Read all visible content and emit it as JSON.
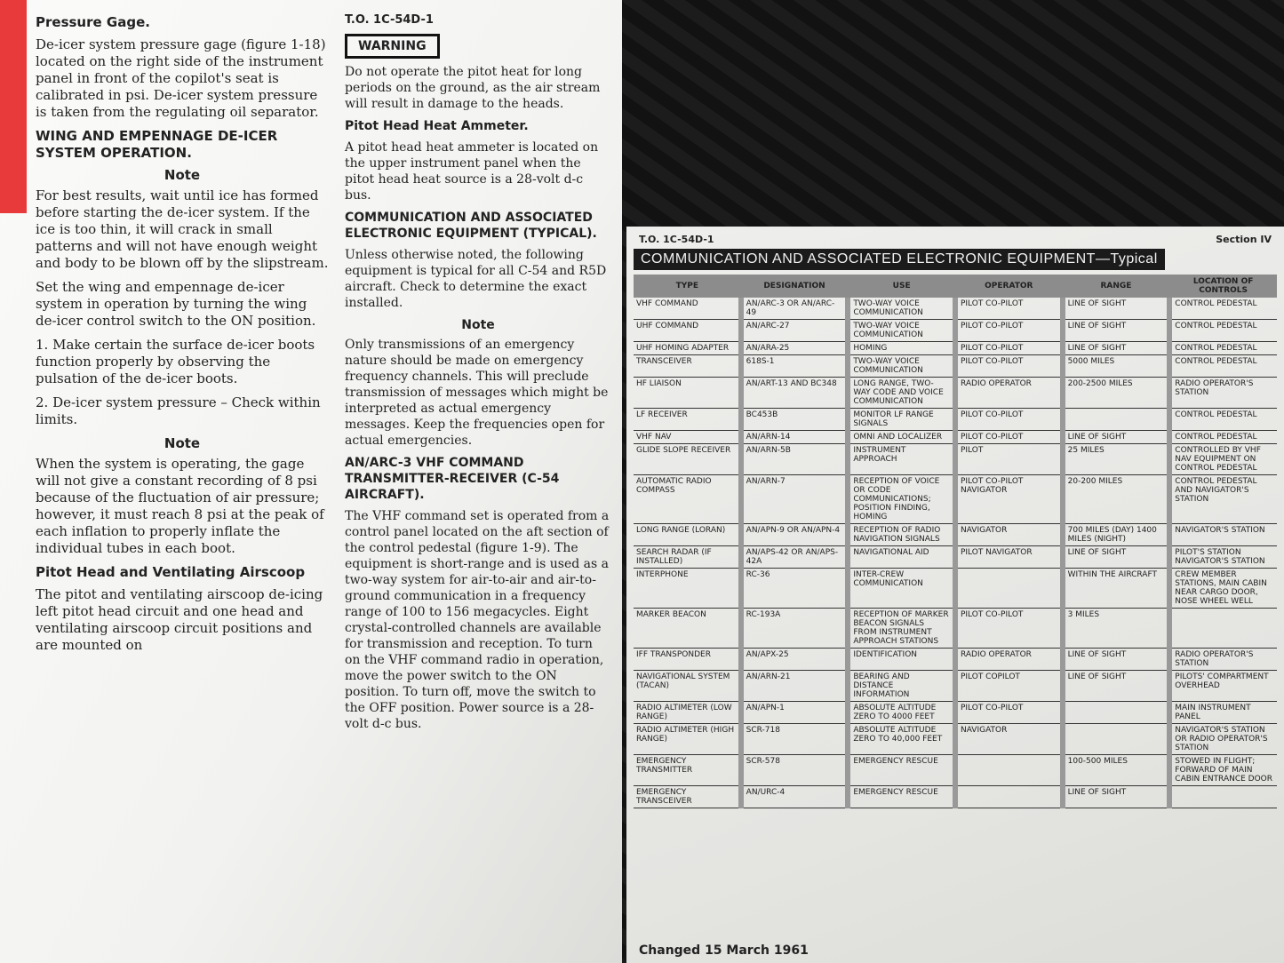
{
  "left_page": {
    "header_fragment": "T.O. 1C-54D-1",
    "pressure_gage_heading": "Pressure Gage.",
    "pressure_gage_text": "De-icer system pressure gage (figure 1-18) located on the right side of the instrument panel in front of the copilot's seat is calibrated in psi. De-icer system pressure is taken from the regulating oil separator.",
    "wing_heading": "WING AND EMPENNAGE DE-ICER SYSTEM OPERATION.",
    "note1_label": "Note",
    "note1_text": "For best results, wait until ice has formed before starting the de-icer system. If the ice is too thin, it will crack in small patterns and will not have enough weight and body to be blown off by the slipstream.",
    "set_text": "Set the wing and empennage de-icer system in operation by turning the wing de-icer control switch to the ON position.",
    "steps": [
      "1. Make certain the surface de-icer boots function properly by observing the pulsation of the de-icer boots.",
      "2. De-icer system pressure – Check within limits."
    ],
    "note2_label": "Note",
    "note2_text": "When the system is operating, the gage will not give a constant recording of 8 psi because of the fluctuation of air pressure; however, it must reach 8 psi at the peak of each inflation to properly inflate the individual tubes in each boot.",
    "airscoop_heading": "Pitot Head and Ventilating Airscoop",
    "airscoop_text": "The pitot and ventilating airscoop de-icing left pitot head circuit and one head and ventilating airscoop circuit positions and are mounted on",
    "warning_label": "WARNING",
    "warning_text": "Do not operate the pitot heat for long periods on the ground, as the air stream will result in damage to the heads.",
    "ammeter_heading": "Pitot Head Heat Ammeter.",
    "ammeter_text": "A pitot head heat ammeter is located on the upper instrument panel when the pitot head heat source is a 28-volt d-c bus.",
    "comm_heading": "COMMUNICATION AND ASSOCIATED ELECTRONIC EQUIPMENT (TYPICAL).",
    "comm_text": "Unless otherwise noted, the following equipment is typical for all C-54 and R5D aircraft. Check to determine the exact installed.",
    "note3_label": "Note",
    "note3_text": "Only transmissions of an emergency nature should be made on emergency frequency channels. This will preclude transmission of messages which might be interpreted as actual emergency messages. Keep the frequencies open for actual emergencies.",
    "arc3_heading": "AN/ARC-3 VHF COMMAND TRANSMITTER-RECEIVER (C-54 AIRCRAFT).",
    "arc3_text": "The VHF command set is operated from a control panel located on the aft section of the control pedestal (figure 1-9). The equipment is short-range and is used as a two-way system for air-to-air and air-to-ground communication in a frequency range of 100 to 156 megacycles. Eight crystal-controlled channels are available for transmission and reception. To turn on the VHF command radio in operation, move the power switch to the ON position. To turn off, move the switch to the OFF position. Power source is a 28-volt d-c bus."
  },
  "right_page": {
    "header": "T.O. 1C-54D-1",
    "section": "Section IV",
    "title": "COMMUNICATION AND ASSOCIATED ELECTRONIC EQUIPMENT—Typical",
    "columns": [
      "TYPE",
      "DESIGNATION",
      "USE",
      "OPERATOR",
      "RANGE",
      "LOCATION OF CONTROLS"
    ],
    "rows": [
      [
        "VHF COMMAND",
        "AN/ARC-3 OR AN/ARC-49",
        "TWO-WAY VOICE COMMUNICATION",
        "PILOT CO-PILOT",
        "LINE OF SIGHT",
        "CONTROL PEDESTAL"
      ],
      [
        "UHF COMMAND",
        "AN/ARC-27",
        "TWO-WAY VOICE COMMUNICATION",
        "PILOT CO-PILOT",
        "LINE OF SIGHT",
        "CONTROL PEDESTAL"
      ],
      [
        "UHF HOMING ADAPTER",
        "AN/ARA-25",
        "HOMING",
        "PILOT CO-PILOT",
        "LINE OF SIGHT",
        "CONTROL PEDESTAL"
      ],
      [
        "TRANSCEIVER",
        "618S-1",
        "TWO-WAY VOICE COMMUNICATION",
        "PILOT CO-PILOT",
        "5000 MILES",
        "CONTROL PEDESTAL"
      ],
      [
        "HF LIAISON",
        "AN/ART-13 AND BC348",
        "LONG RANGE, TWO-WAY CODE AND VOICE COMMUNICATION",
        "RADIO OPERATOR",
        "200-2500 MILES",
        "RADIO OPERATOR'S STATION"
      ],
      [
        "LF RECEIVER",
        "BC453B",
        "MONITOR LF RANGE SIGNALS",
        "PILOT CO-PILOT",
        "",
        "CONTROL PEDESTAL"
      ],
      [
        "VHF NAV",
        "AN/ARN-14",
        "OMNI AND LOCALIZER",
        "PILOT CO-PILOT",
        "LINE OF SIGHT",
        "CONTROL PEDESTAL"
      ],
      [
        "GLIDE SLOPE RECEIVER",
        "AN/ARN-5B",
        "INSTRUMENT APPROACH",
        "PILOT",
        "25 MILES",
        "CONTROLLED BY VHF NAV EQUIPMENT ON CONTROL PEDESTAL"
      ],
      [
        "AUTOMATIC RADIO COMPASS",
        "AN/ARN-7",
        "RECEPTION OF VOICE OR CODE COMMUNICATIONS; POSITION FINDING, HOMING",
        "PILOT CO-PILOT NAVIGATOR",
        "20-200 MILES",
        "CONTROL PEDESTAL AND NAVIGATOR'S STATION"
      ],
      [
        "LONG RANGE (LORAN)",
        "AN/APN-9 OR AN/APN-4",
        "RECEPTION OF RADIO NAVIGATION SIGNALS",
        "NAVIGATOR",
        "700 MILES (DAY) 1400 MILES (NIGHT)",
        "NAVIGATOR'S STATION"
      ],
      [
        "SEARCH RADAR (IF INSTALLED)",
        "AN/APS-42 OR AN/APS-42A",
        "NAVIGATIONAL AID",
        "PILOT NAVIGATOR",
        "LINE OF SIGHT",
        "PILOT'S STATION NAVIGATOR'S STATION"
      ],
      [
        "INTERPHONE",
        "RC-36",
        "INTER-CREW COMMUNICATION",
        "",
        "WITHIN THE AIRCRAFT",
        "CREW MEMBER STATIONS, MAIN CABIN NEAR CARGO DOOR, NOSE WHEEL WELL"
      ],
      [
        "MARKER BEACON",
        "RC-193A",
        "RECEPTION OF MARKER BEACON SIGNALS FROM INSTRUMENT APPROACH STATIONS",
        "PILOT CO-PILOT",
        "3 MILES",
        ""
      ],
      [
        "IFF TRANSPONDER",
        "AN/APX-25",
        "IDENTIFICATION",
        "RADIO OPERATOR",
        "LINE OF SIGHT",
        "RADIO OPERATOR'S STATION"
      ],
      [
        "NAVIGATIONAL SYSTEM (TACAN)",
        "AN/ARN-21",
        "BEARING AND DISTANCE INFORMATION",
        "PILOT COPILOT",
        "LINE OF SIGHT",
        "PILOTS' COMPARTMENT OVERHEAD"
      ],
      [
        "RADIO ALTIMETER (LOW RANGE)",
        "AN/APN-1",
        "ABSOLUTE ALTITUDE ZERO TO 4000 FEET",
        "PILOT CO-PILOT",
        "",
        "MAIN INSTRUMENT PANEL"
      ],
      [
        "RADIO ALTIMETER (HIGH RANGE)",
        "SCR-718",
        "ABSOLUTE ALTITUDE ZERO TO 40,000 FEET",
        "NAVIGATOR",
        "",
        "NAVIGATOR'S STATION OR RADIO OPERATOR'S STATION"
      ],
      [
        "EMERGENCY TRANSMITTER",
        "SCR-578",
        "EMERGENCY RESCUE",
        "",
        "100-500 MILES",
        "STOWED IN FLIGHT; FORWARD OF MAIN CABIN ENTRANCE DOOR"
      ],
      [
        "EMERGENCY TRANSCEIVER",
        "AN/URC-4",
        "EMERGENCY RESCUE",
        "",
        "LINE OF SIGHT",
        ""
      ]
    ],
    "footer": "Changed 15 March 1961"
  },
  "colors": {
    "page": "#f4f4f2",
    "title_bar": "#1b1b1b",
    "column_bar": "#999999",
    "edge_red": "#e83a3a",
    "background": "#151515"
  }
}
